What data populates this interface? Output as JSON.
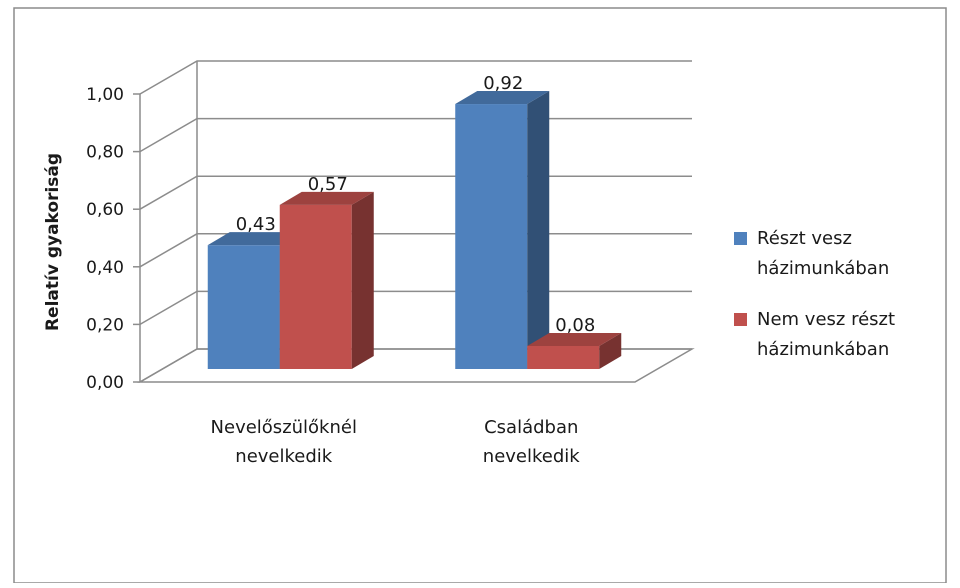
{
  "chart_data": {
    "type": "bar",
    "style": "3d-clustered-column",
    "ylabel": "Relatív gyakoriság",
    "ylim": [
      0,
      1
    ],
    "yticks": [
      "0,00",
      "0,20",
      "0,40",
      "0,60",
      "0,80",
      "1,00"
    ],
    "ytick_values": [
      0,
      0.2,
      0.4,
      0.6,
      0.8,
      1.0
    ],
    "grid": true,
    "legend_position": "right",
    "categories": [
      [
        "Nevelőszülőknél",
        "nevelkedik"
      ],
      [
        "Családban",
        "nevelkedik"
      ]
    ],
    "series": [
      {
        "name": [
          "Részt vesz",
          "házimunkában"
        ],
        "values": [
          0.43,
          0.92
        ],
        "labels": [
          "0,43",
          "0,92"
        ],
        "color": "#4f81bd"
      },
      {
        "name": [
          "Nem vesz részt",
          "házimunkában"
        ],
        "values": [
          0.57,
          0.08
        ],
        "labels": [
          "0,57",
          "0,08"
        ],
        "color": "#c0504d"
      }
    ]
  }
}
